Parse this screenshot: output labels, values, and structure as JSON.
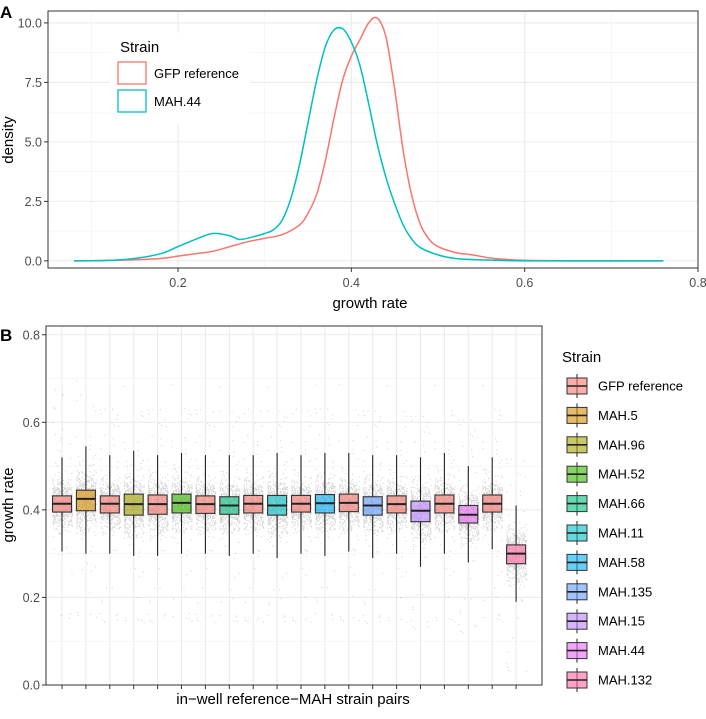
{
  "panel_a": {
    "tag": "A",
    "xlabel": "growth rate",
    "ylabel": "density",
    "xticks": [
      "0.2",
      "0.4",
      "0.6",
      "0.8"
    ],
    "yticks": [
      "0.0",
      "2.5",
      "5.0",
      "7.5",
      "10.0"
    ],
    "legend_title": "Strain",
    "legend_items": [
      "GFP reference",
      "MAH.44"
    ]
  },
  "panel_b": {
    "tag": "B",
    "xlabel": "in−well reference−MAH strain pairs",
    "ylabel": "growth rate",
    "yticks": [
      "0.0",
      "0.2",
      "0.4",
      "0.6",
      "0.8"
    ],
    "legend_title": "Strain",
    "legend_items": [
      "GFP reference",
      "MAH.5",
      "MAH.96",
      "MAH.52",
      "MAH.66",
      "MAH.11",
      "MAH.58",
      "MAH.135",
      "MAH.15",
      "MAH.44",
      "MAH.132"
    ]
  },
  "chart_data": [
    {
      "type": "line",
      "subtype": "density",
      "title": "",
      "xlabel": "growth rate",
      "ylabel": "density",
      "xlim": [
        0.05,
        0.8
      ],
      "ylim": [
        -0.3,
        10.5
      ],
      "legend": "top-left",
      "series": [
        {
          "name": "GFP reference",
          "color": "#F8766D",
          "x": [
            0.08,
            0.12,
            0.15,
            0.18,
            0.2,
            0.22,
            0.24,
            0.26,
            0.28,
            0.3,
            0.32,
            0.34,
            0.35,
            0.36,
            0.37,
            0.38,
            0.39,
            0.4,
            0.41,
            0.42,
            0.43,
            0.44,
            0.45,
            0.46,
            0.47,
            0.48,
            0.49,
            0.5,
            0.52,
            0.54,
            0.56,
            0.58,
            0.6,
            0.65,
            0.7,
            0.76
          ],
          "y": [
            0.0,
            0.02,
            0.05,
            0.1,
            0.2,
            0.3,
            0.4,
            0.6,
            0.8,
            0.95,
            1.1,
            1.5,
            2.0,
            2.8,
            4.2,
            6.0,
            7.6,
            8.6,
            9.3,
            10.0,
            10.2,
            9.4,
            7.2,
            4.6,
            2.7,
            1.5,
            0.9,
            0.6,
            0.35,
            0.25,
            0.12,
            0.06,
            0.02,
            0.0,
            0.0,
            0.0
          ]
        },
        {
          "name": "MAH.44",
          "color": "#00BFC4",
          "x": [
            0.08,
            0.12,
            0.15,
            0.18,
            0.2,
            0.22,
            0.24,
            0.26,
            0.27,
            0.28,
            0.3,
            0.31,
            0.32,
            0.33,
            0.34,
            0.35,
            0.36,
            0.37,
            0.38,
            0.39,
            0.4,
            0.41,
            0.42,
            0.43,
            0.44,
            0.45,
            0.46,
            0.47,
            0.48,
            0.5,
            0.52,
            0.55,
            0.6,
            0.65,
            0.7,
            0.76
          ],
          "y": [
            0.0,
            0.02,
            0.1,
            0.3,
            0.6,
            0.9,
            1.15,
            1.05,
            0.9,
            0.95,
            1.15,
            1.3,
            1.7,
            2.6,
            4.0,
            5.8,
            7.6,
            9.0,
            9.7,
            9.75,
            9.2,
            8.2,
            6.6,
            4.9,
            3.5,
            2.4,
            1.5,
            0.9,
            0.55,
            0.25,
            0.1,
            0.04,
            0.0,
            0.0,
            0.0,
            0.0
          ]
        }
      ]
    },
    {
      "type": "box",
      "title": "",
      "xlabel": "in−well reference−MAH strain pairs",
      "ylabel": "growth rate",
      "ylim": [
        0.0,
        0.82
      ],
      "legend": "right",
      "boxes": [
        {
          "strain": "GFP reference",
          "q1": 0.395,
          "median": 0.414,
          "q3": 0.432,
          "wlo": 0.305,
          "whi": 0.52,
          "color": "#F8766D"
        },
        {
          "strain": "MAH.5",
          "q1": 0.398,
          "median": 0.425,
          "q3": 0.445,
          "wlo": 0.3,
          "whi": 0.545,
          "color": "#D89000"
        },
        {
          "strain": "GFP reference",
          "q1": 0.393,
          "median": 0.414,
          "q3": 0.432,
          "wlo": 0.3,
          "whi": 0.525,
          "color": "#F8766D"
        },
        {
          "strain": "MAH.96",
          "q1": 0.388,
          "median": 0.413,
          "q3": 0.436,
          "wlo": 0.295,
          "whi": 0.535,
          "color": "#A3A500"
        },
        {
          "strain": "GFP reference",
          "q1": 0.39,
          "median": 0.413,
          "q3": 0.434,
          "wlo": 0.295,
          "whi": 0.525,
          "color": "#F8766D"
        },
        {
          "strain": "MAH.52",
          "q1": 0.393,
          "median": 0.416,
          "q3": 0.436,
          "wlo": 0.3,
          "whi": 0.53,
          "color": "#39B600"
        },
        {
          "strain": "GFP reference",
          "q1": 0.392,
          "median": 0.413,
          "q3": 0.432,
          "wlo": 0.3,
          "whi": 0.525,
          "color": "#F8766D"
        },
        {
          "strain": "MAH.66",
          "q1": 0.39,
          "median": 0.41,
          "q3": 0.43,
          "wlo": 0.295,
          "whi": 0.525,
          "color": "#00BF7D"
        },
        {
          "strain": "GFP reference",
          "q1": 0.393,
          "median": 0.414,
          "q3": 0.433,
          "wlo": 0.3,
          "whi": 0.525,
          "color": "#F8766D"
        },
        {
          "strain": "MAH.11",
          "q1": 0.388,
          "median": 0.41,
          "q3": 0.433,
          "wlo": 0.29,
          "whi": 0.53,
          "color": "#00BFC4"
        },
        {
          "strain": "GFP reference",
          "q1": 0.395,
          "median": 0.414,
          "q3": 0.433,
          "wlo": 0.3,
          "whi": 0.525,
          "color": "#F8766D"
        },
        {
          "strain": "MAH.58",
          "q1": 0.393,
          "median": 0.415,
          "q3": 0.435,
          "wlo": 0.295,
          "whi": 0.53,
          "color": "#00B0F6"
        },
        {
          "strain": "GFP reference",
          "q1": 0.396,
          "median": 0.416,
          "q3": 0.436,
          "wlo": 0.305,
          "whi": 0.53,
          "color": "#F8766D"
        },
        {
          "strain": "MAH.135",
          "q1": 0.388,
          "median": 0.41,
          "q3": 0.43,
          "wlo": 0.29,
          "whi": 0.525,
          "color": "#619CFF"
        },
        {
          "strain": "GFP reference",
          "q1": 0.393,
          "median": 0.413,
          "q3": 0.432,
          "wlo": 0.3,
          "whi": 0.525,
          "color": "#F8766D"
        },
        {
          "strain": "MAH.15",
          "q1": 0.373,
          "median": 0.398,
          "q3": 0.42,
          "wlo": 0.27,
          "whi": 0.52,
          "color": "#B983FF"
        },
        {
          "strain": "GFP reference",
          "q1": 0.393,
          "median": 0.414,
          "q3": 0.434,
          "wlo": 0.3,
          "whi": 0.53,
          "color": "#F8766D"
        },
        {
          "strain": "MAH.44",
          "q1": 0.37,
          "median": 0.389,
          "q3": 0.41,
          "wlo": 0.28,
          "whi": 0.5,
          "color": "#E76BF3"
        },
        {
          "strain": "GFP reference",
          "q1": 0.395,
          "median": 0.414,
          "q3": 0.434,
          "wlo": 0.31,
          "whi": 0.52,
          "color": "#F8766D"
        },
        {
          "strain": "MAH.132",
          "q1": 0.277,
          "median": 0.3,
          "q3": 0.32,
          "wlo": 0.19,
          "whi": 0.41,
          "color": "#FF67A4"
        }
      ]
    }
  ]
}
